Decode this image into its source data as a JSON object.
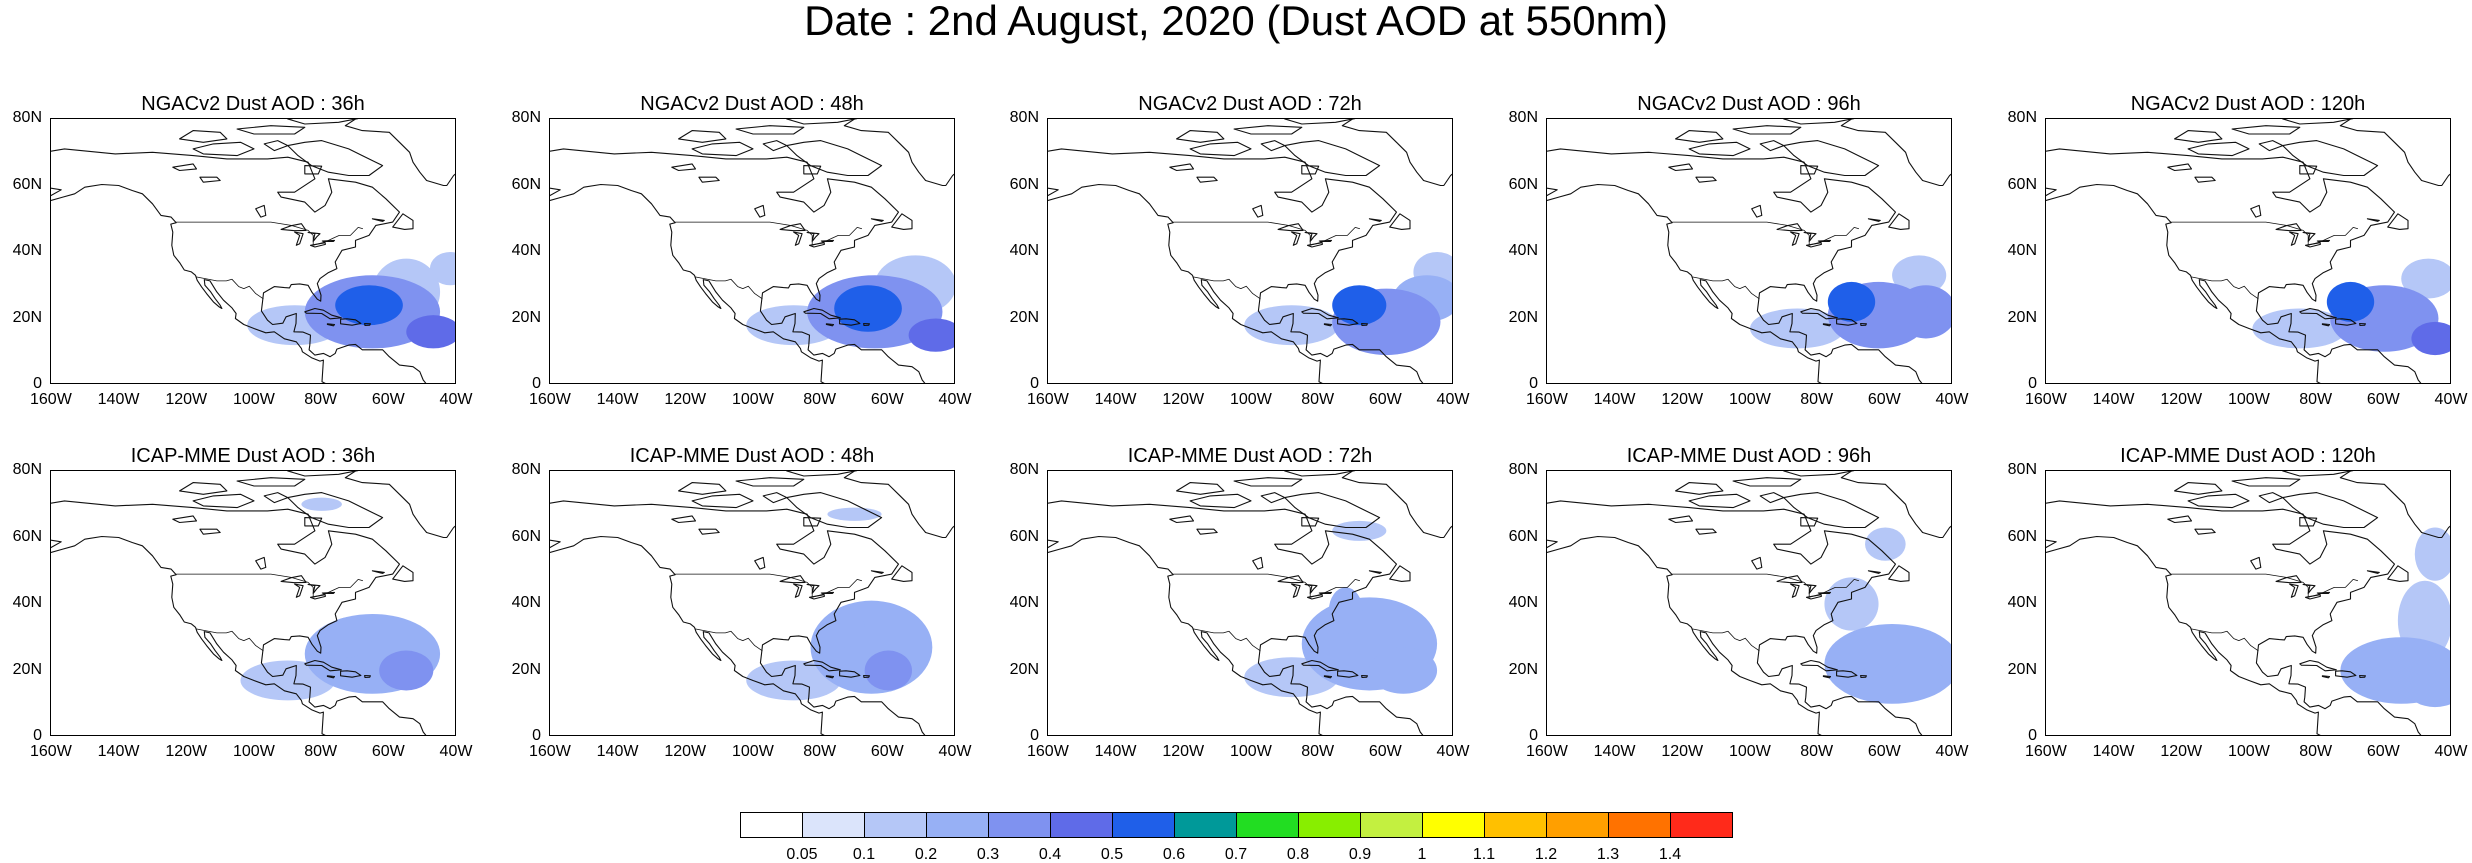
{
  "title": "Date : 2nd August, 2020 (Dust AOD at 550nm)",
  "chart_data": {
    "type": "heatmap",
    "variable": "Dust AOD at 550nm",
    "date": "2nd August, 2020",
    "lon_range": [
      -160,
      -40
    ],
    "lat_range": [
      0,
      80
    ],
    "x_ticks": [
      "160W",
      "140W",
      "120W",
      "100W",
      "80W",
      "60W",
      "40W"
    ],
    "y_ticks": [
      "80N",
      "60N",
      "40N",
      "20N",
      "0"
    ],
    "colorbar": {
      "labels": [
        "0.05",
        "0.1",
        "0.2",
        "0.3",
        "0.4",
        "0.5",
        "0.6",
        "0.7",
        "0.8",
        "0.9",
        "1",
        "1.1",
        "1.2",
        "1.3",
        "1.4"
      ],
      "colors": [
        "#ffffff",
        "#dbe4fb",
        "#b5c7f7",
        "#97b0f5",
        "#7f92f0",
        "#5f6be8",
        "#1f5fe9",
        "#009999",
        "#22dd22",
        "#88ee00",
        "#c3f040",
        "#ffff00",
        "#ffc000",
        "#ff9f00",
        "#ff7200",
        "#ff2a1a"
      ]
    },
    "panels": [
      {
        "title": "NGACv2 Dust AOD : 36h",
        "model": "NGACv2",
        "lead": "36h",
        "blobs": [
          {
            "lon": -66,
            "lat": 24,
            "rx": 10,
            "ry": 6,
            "aod": 0.5
          },
          {
            "lon": -47,
            "lat": 16,
            "rx": 8,
            "ry": 5,
            "aod": 0.45
          },
          {
            "lon": -65,
            "lat": 22,
            "rx": 20,
            "ry": 11,
            "aod": 0.3
          },
          {
            "lon": -55,
            "lat": 28,
            "rx": 10,
            "ry": 10,
            "aod": 0.15
          },
          {
            "lon": -88,
            "lat": 18,
            "rx": 14,
            "ry": 6,
            "aod": 0.12
          },
          {
            "lon": -42,
            "lat": 35,
            "rx": 6,
            "ry": 5,
            "aod": 0.1
          }
        ]
      },
      {
        "title": "NGACv2 Dust AOD : 48h",
        "model": "NGACv2",
        "lead": "48h",
        "blobs": [
          {
            "lon": -66,
            "lat": 23,
            "rx": 10,
            "ry": 7,
            "aod": 0.5
          },
          {
            "lon": -46,
            "lat": 15,
            "rx": 8,
            "ry": 5,
            "aod": 0.4
          },
          {
            "lon": -64,
            "lat": 22,
            "rx": 20,
            "ry": 11,
            "aod": 0.3
          },
          {
            "lon": -52,
            "lat": 30,
            "rx": 12,
            "ry": 9,
            "aod": 0.15
          },
          {
            "lon": -88,
            "lat": 18,
            "rx": 14,
            "ry": 6,
            "aod": 0.12
          }
        ]
      },
      {
        "title": "NGACv2 Dust AOD : 72h",
        "model": "NGACv2",
        "lead": "72h",
        "blobs": [
          {
            "lon": -68,
            "lat": 24,
            "rx": 8,
            "ry": 6,
            "aod": 0.5
          },
          {
            "lon": -60,
            "lat": 19,
            "rx": 16,
            "ry": 10,
            "aod": 0.35
          },
          {
            "lon": -48,
            "lat": 26,
            "rx": 10,
            "ry": 7,
            "aod": 0.25
          },
          {
            "lon": -45,
            "lat": 34,
            "rx": 7,
            "ry": 6,
            "aod": 0.12
          },
          {
            "lon": -88,
            "lat": 18,
            "rx": 14,
            "ry": 6,
            "aod": 0.12
          }
        ]
      },
      {
        "title": "NGACv2 Dust AOD : 96h",
        "model": "NGACv2",
        "lead": "96h",
        "blobs": [
          {
            "lon": -70,
            "lat": 25,
            "rx": 7,
            "ry": 6,
            "aod": 0.5
          },
          {
            "lon": -62,
            "lat": 21,
            "rx": 15,
            "ry": 10,
            "aod": 0.35
          },
          {
            "lon": -48,
            "lat": 22,
            "rx": 9,
            "ry": 8,
            "aod": 0.3
          },
          {
            "lon": -50,
            "lat": 33,
            "rx": 8,
            "ry": 6,
            "aod": 0.15
          },
          {
            "lon": -86,
            "lat": 17,
            "rx": 14,
            "ry": 6,
            "aod": 0.12
          }
        ]
      },
      {
        "title": "NGACv2 Dust AOD : 120h",
        "model": "NGACv2",
        "lead": "120h",
        "blobs": [
          {
            "lon": -70,
            "lat": 25,
            "rx": 7,
            "ry": 6,
            "aod": 0.5
          },
          {
            "lon": -60,
            "lat": 20,
            "rx": 16,
            "ry": 10,
            "aod": 0.35
          },
          {
            "lon": -45,
            "lat": 14,
            "rx": 7,
            "ry": 5,
            "aod": 0.45
          },
          {
            "lon": -47,
            "lat": 32,
            "rx": 8,
            "ry": 6,
            "aod": 0.15
          },
          {
            "lon": -85,
            "lat": 17,
            "rx": 14,
            "ry": 6,
            "aod": 0.12
          }
        ]
      },
      {
        "title": "ICAP-MME Dust AOD : 36h",
        "model": "ICAP-MME",
        "lead": "36h",
        "blobs": [
          {
            "lon": -65,
            "lat": 25,
            "rx": 20,
            "ry": 12,
            "aod": 0.2
          },
          {
            "lon": -55,
            "lat": 20,
            "rx": 8,
            "ry": 6,
            "aod": 0.3
          },
          {
            "lon": -72,
            "lat": 30,
            "rx": 7,
            "ry": 6,
            "aod": 0.25
          },
          {
            "lon": -90,
            "lat": 17,
            "rx": 14,
            "ry": 6,
            "aod": 0.12
          },
          {
            "lon": -80,
            "lat": 70,
            "rx": 6,
            "ry": 2,
            "aod": 0.12
          }
        ]
      },
      {
        "title": "ICAP-MME Dust AOD : 48h",
        "model": "ICAP-MME",
        "lead": "48h",
        "blobs": [
          {
            "lon": -65,
            "lat": 27,
            "rx": 18,
            "ry": 14,
            "aod": 0.2
          },
          {
            "lon": -60,
            "lat": 20,
            "rx": 7,
            "ry": 6,
            "aod": 0.3
          },
          {
            "lon": -73,
            "lat": 33,
            "rx": 6,
            "ry": 6,
            "aod": 0.25
          },
          {
            "lon": -88,
            "lat": 17,
            "rx": 14,
            "ry": 6,
            "aod": 0.12
          },
          {
            "lon": -70,
            "lat": 67,
            "rx": 8,
            "ry": 2,
            "aod": 0.12
          }
        ]
      },
      {
        "title": "ICAP-MME Dust AOD : 72h",
        "model": "ICAP-MME",
        "lead": "72h",
        "blobs": [
          {
            "lon": -65,
            "lat": 28,
            "rx": 20,
            "ry": 14,
            "aod": 0.2
          },
          {
            "lon": -55,
            "lat": 20,
            "rx": 10,
            "ry": 7,
            "aod": 0.25
          },
          {
            "lon": -72,
            "lat": 38,
            "rx": 5,
            "ry": 7,
            "aod": 0.25
          },
          {
            "lon": -88,
            "lat": 18,
            "rx": 14,
            "ry": 6,
            "aod": 0.12
          },
          {
            "lon": -68,
            "lat": 62,
            "rx": 8,
            "ry": 3,
            "aod": 0.12
          }
        ]
      },
      {
        "title": "ICAP-MME Dust AOD : 96h",
        "model": "ICAP-MME",
        "lead": "96h",
        "blobs": [
          {
            "lon": -58,
            "lat": 22,
            "rx": 20,
            "ry": 12,
            "aod": 0.2
          },
          {
            "lon": -70,
            "lat": 40,
            "rx": 8,
            "ry": 8,
            "aod": 0.15
          },
          {
            "lon": -50,
            "lat": 18,
            "rx": 8,
            "ry": 6,
            "aod": 0.25
          },
          {
            "lon": -60,
            "lat": 58,
            "rx": 6,
            "ry": 5,
            "aod": 0.1
          }
        ]
      },
      {
        "title": "ICAP-MME Dust AOD : 120h",
        "model": "ICAP-MME",
        "lead": "120h",
        "blobs": [
          {
            "lon": -55,
            "lat": 20,
            "rx": 18,
            "ry": 10,
            "aod": 0.2
          },
          {
            "lon": -48,
            "lat": 35,
            "rx": 8,
            "ry": 12,
            "aod": 0.12
          },
          {
            "lon": -45,
            "lat": 14,
            "rx": 8,
            "ry": 5,
            "aod": 0.25
          },
          {
            "lon": -45,
            "lat": 55,
            "rx": 6,
            "ry": 8,
            "aod": 0.1
          }
        ]
      }
    ]
  }
}
